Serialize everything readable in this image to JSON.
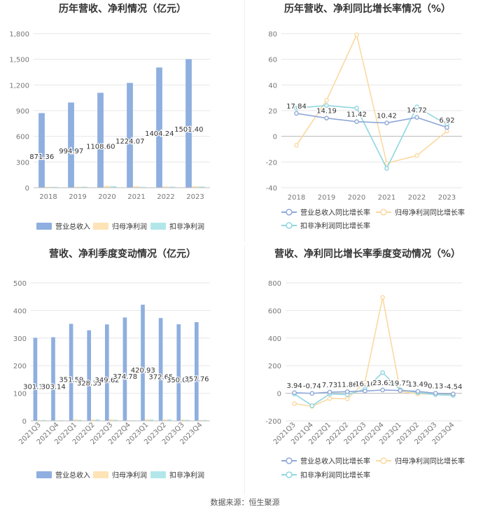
{
  "source": "数据来源：恒生聚源",
  "chart_data": [
    {
      "type": "bar",
      "title": "历年营收、净利情况（亿元）",
      "categories": [
        "2018",
        "2019",
        "2020",
        "2021",
        "2022",
        "2023"
      ],
      "ylim": [
        0,
        1800
      ],
      "yticks": [
        0,
        300,
        600,
        900,
        1200,
        1500,
        1800
      ],
      "ytick_labels": [
        "0",
        "300",
        "600",
        "900",
        "1,200",
        "1,500",
        "1,800"
      ],
      "series": [
        {
          "name": "营业总收入",
          "color": "#8eafdf",
          "values": [
            871.36,
            994.97,
            1108.6,
            1224.07,
            1404.24,
            1501.4
          ],
          "labels": [
            "871.36",
            "994.97",
            "1108.60",
            "1224.07",
            "1404.24",
            "1501.40"
          ]
        },
        {
          "name": "归母净利润",
          "color": "#fde3b6",
          "values": [
            10,
            11,
            22,
            18,
            14,
            17
          ]
        },
        {
          "name": "扣非净利润",
          "color": "#b2e7ea",
          "values": [
            9,
            11,
            18,
            9,
            12,
            14
          ]
        }
      ]
    },
    {
      "type": "line",
      "title": "历年营收、净利同比增长率情况（%）",
      "categories": [
        "2018",
        "2019",
        "2020",
        "2021",
        "2022",
        "2023"
      ],
      "ylim": [
        -40,
        80
      ],
      "yticks": [
        -40,
        -20,
        0,
        20,
        40,
        60,
        80
      ],
      "ytick_labels": [
        "-40",
        "-20",
        "0",
        "20",
        "40",
        "60",
        "80"
      ],
      "series": [
        {
          "name": "营业总收入同比增长率",
          "color": "#8fa8d8",
          "values": [
            17.84,
            14.19,
            11.42,
            10.42,
            14.72,
            6.92
          ],
          "labels": [
            "17.84",
            "14.19",
            "11.42",
            "10.42",
            "14.72",
            "6.92"
          ]
        },
        {
          "name": "归母净利润同比增长率",
          "color": "#fbd9a1",
          "values": [
            -7,
            28,
            79,
            -21,
            -15,
            4
          ]
        },
        {
          "name": "扣非净利润同比增长率",
          "color": "#8fd6df",
          "values": [
            22,
            24,
            22,
            -25,
            23,
            9
          ]
        }
      ]
    },
    {
      "type": "bar",
      "title": "营收、净利季度变动情况（亿元）",
      "categories": [
        "2021Q3",
        "2021Q4",
        "2022Q1",
        "2022Q2",
        "2022Q3",
        "2022Q4",
        "2023Q1",
        "2023Q2",
        "2023Q3",
        "2023Q4"
      ],
      "ylim": [
        0,
        500
      ],
      "yticks": [
        0,
        100,
        200,
        300,
        400,
        500
      ],
      "ytick_labels": [
        "0",
        "100",
        "200",
        "300",
        "400",
        "500"
      ],
      "series": [
        {
          "name": "营业总收入",
          "color": "#8eafdf",
          "values": [
            301.13,
            303.14,
            351.59,
            328.33,
            349.62,
            374.78,
            420.93,
            372.65,
            350.03,
            357.76
          ],
          "labels": [
            "301.13",
            "303.14",
            "351.59",
            "328.33",
            "349.62",
            "374.78",
            "420.93",
            "372.65",
            "350.03",
            "357.76"
          ]
        },
        {
          "name": "归母净利润",
          "color": "#fde3b6",
          "values": [
            3,
            2,
            6,
            5,
            6,
            2,
            6,
            5,
            5,
            3
          ]
        },
        {
          "name": "扣非净利润",
          "color": "#b2e7ea",
          "values": [
            3,
            2,
            4,
            6,
            4,
            2,
            5,
            6,
            4,
            3
          ]
        }
      ]
    },
    {
      "type": "line",
      "title": "营收、净利同比增长率季度变动情况（%）",
      "categories": [
        "2021Q3",
        "2021Q4",
        "2022Q1",
        "2022Q2",
        "2022Q3",
        "2022Q4",
        "2023Q1",
        "2023Q2",
        "2023Q3",
        "2023Q4"
      ],
      "ylim": [
        -200,
        800
      ],
      "yticks": [
        -200,
        0,
        200,
        400,
        600,
        800
      ],
      "ytick_labels": [
        "-200",
        "0",
        "200",
        "400",
        "600",
        "800"
      ],
      "series": [
        {
          "name": "营业总收入同比增长率",
          "color": "#8fa8d8",
          "values": [
            3.94,
            -0.74,
            7.73,
            11.86,
            16.1,
            23.63,
            19.75,
            13.49,
            0.13,
            -4.54
          ],
          "labels": [
            "3.94",
            "-0.74",
            "7.73",
            "11.86",
            "16.10",
            "23.63",
            "19.75",
            "13.49",
            "0.13",
            "-4.54"
          ]
        },
        {
          "name": "归母净利润同比增长率",
          "color": "#fbd9a1",
          "values": [
            -75,
            -95,
            -38,
            -40,
            80,
            695,
            15,
            -5,
            -5,
            -15
          ]
        },
        {
          "name": "扣非净利润同比增长率",
          "color": "#8fd6df",
          "values": [
            -5,
            -90,
            -5,
            -10,
            30,
            150,
            25,
            5,
            -10,
            -15
          ]
        }
      ]
    }
  ]
}
